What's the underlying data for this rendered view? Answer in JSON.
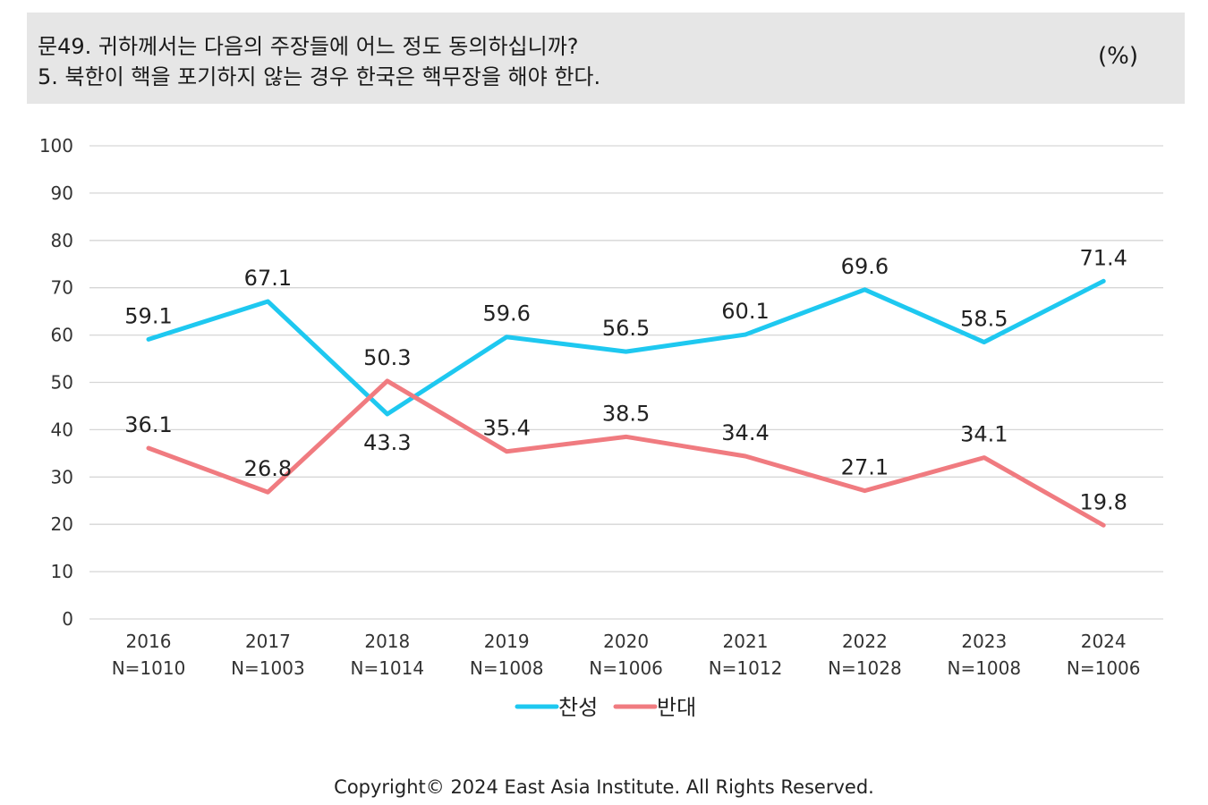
{
  "header": {
    "title_line1": "문49. 귀하께서는 다음의 주장들에 어느 정도 동의하십니까?",
    "title_line2": "5. 북한이 핵을 포기하지 않는 경우 한국은 핵무장을 해야 한다.",
    "unit": "(%)"
  },
  "chart_data": {
    "type": "line",
    "x": [
      "2016",
      "2017",
      "2018",
      "2019",
      "2020",
      "2021",
      "2022",
      "2023",
      "2024"
    ],
    "x_sublabels": [
      "N=1010",
      "N=1003",
      "N=1014",
      "N=1008",
      "N=1006",
      "N=1012",
      "N=1028",
      "N=1008",
      "N=1006"
    ],
    "ylim": [
      0,
      100
    ],
    "yticks": [
      0,
      10,
      20,
      30,
      40,
      50,
      60,
      70,
      80,
      90,
      100
    ],
    "grid": true,
    "legend_position": "bottom",
    "series": [
      {
        "name": "찬성",
        "color": "#1ec8f0",
        "values": [
          59.1,
          67.1,
          43.3,
          59.6,
          56.5,
          60.1,
          69.6,
          58.5,
          71.4
        ],
        "labels": [
          "59.1",
          "67.1",
          "43.3",
          "59.6",
          "56.5",
          "60.1",
          "69.6",
          "58.5",
          "71.4"
        ]
      },
      {
        "name": "반대",
        "color": "#f07b80",
        "values": [
          36.1,
          26.8,
          50.3,
          35.4,
          38.5,
          34.4,
          27.1,
          34.1,
          19.8
        ],
        "labels": [
          "36.1",
          "26.8",
          "50.3",
          "35.4",
          "38.5",
          "34.4",
          "27.1",
          "34.1",
          "19.8"
        ]
      }
    ]
  },
  "footer": {
    "copyright": "Copyright© 2024 East Asia Institute. All Rights Reserved."
  }
}
